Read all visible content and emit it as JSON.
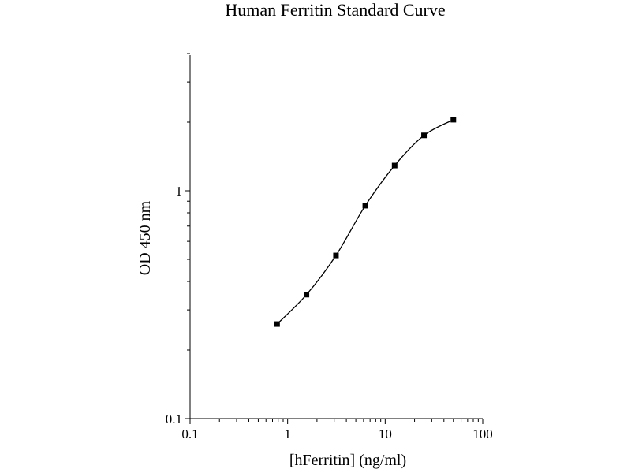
{
  "chart_data": {
    "type": "scatter",
    "title": "Human Ferritin Standard Curve",
    "xlabel": "[hFerritin] (ng/ml)",
    "ylabel": "OD 450 nm",
    "x_scale": "log",
    "y_scale": "log",
    "xlim": [
      0.1,
      100
    ],
    "ylim": [
      0.1,
      4
    ],
    "x_ticks": [
      0.1,
      1,
      10,
      100
    ],
    "x_tick_labels": [
      "0.1",
      "1",
      "10",
      "100"
    ],
    "y_ticks": [
      0.1,
      1
    ],
    "y_tick_labels": [
      "0.1",
      "1"
    ],
    "grid": false,
    "line_color": "#000000",
    "marker_color": "#000000",
    "series": [
      {
        "points": [
          {
            "x": 0.78,
            "y": 0.26
          },
          {
            "x": 1.56,
            "y": 0.35
          },
          {
            "x": 3.13,
            "y": 0.52
          },
          {
            "x": 6.25,
            "y": 0.86
          },
          {
            "x": 12.5,
            "y": 1.29
          },
          {
            "x": 25,
            "y": 1.75
          },
          {
            "x": 50,
            "y": 2.05
          }
        ]
      }
    ]
  }
}
